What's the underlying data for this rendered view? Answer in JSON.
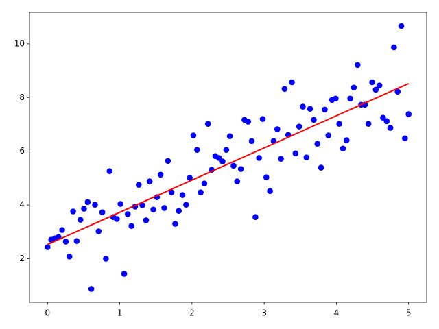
{
  "chart_data": {
    "type": "scatter",
    "xlim": [
      -0.25,
      5.25
    ],
    "ylim": [
      0.38,
      11.17
    ],
    "xticks": [
      0,
      1,
      2,
      3,
      4,
      5
    ],
    "yticks": [
      2,
      4,
      6,
      8,
      10
    ],
    "series": [
      {
        "type": "scatter",
        "color": "#0000ff",
        "x": [
          0,
          0.051,
          0.101,
          0.152,
          0.202,
          0.253,
          0.303,
          0.354,
          0.404,
          0.455,
          0.505,
          0.556,
          0.606,
          0.657,
          0.707,
          0.758,
          0.808,
          0.859,
          0.909,
          0.96,
          1.01,
          1.061,
          1.111,
          1.162,
          1.212,
          1.263,
          1.313,
          1.364,
          1.414,
          1.465,
          1.515,
          1.566,
          1.616,
          1.667,
          1.717,
          1.768,
          1.818,
          1.869,
          1.919,
          1.97,
          2.02,
          2.071,
          2.121,
          2.172,
          2.222,
          2.273,
          2.323,
          2.374,
          2.424,
          2.475,
          2.525,
          2.576,
          2.626,
          2.677,
          2.727,
          2.778,
          2.828,
          2.879,
          2.929,
          2.98,
          3.03,
          3.081,
          3.131,
          3.182,
          3.232,
          3.283,
          3.333,
          3.384,
          3.434,
          3.485,
          3.535,
          3.586,
          3.636,
          3.687,
          3.737,
          3.788,
          3.838,
          3.889,
          3.939,
          3.99,
          4.04,
          4.091,
          4.141,
          4.192,
          4.242,
          4.293,
          4.343,
          4.394,
          4.444,
          4.495,
          4.545,
          4.596,
          4.646,
          4.697,
          4.747,
          4.798,
          4.848,
          4.899,
          4.949,
          5
        ],
        "values": [
          2.43,
          2.71,
          2.76,
          2.81,
          3.07,
          2.64,
          2.08,
          3.76,
          2.66,
          3.45,
          3.86,
          4.11,
          0.88,
          4.01,
          3.02,
          3.73,
          2.0,
          5.26,
          3.55,
          3.48,
          4.04,
          1.44,
          3.66,
          3.22,
          3.94,
          4.75,
          3.99,
          3.43,
          4.88,
          3.83,
          4.29,
          5.13,
          3.89,
          5.64,
          4.47,
          3.3,
          3.78,
          4.37,
          4.01,
          5.01,
          6.59,
          6.05,
          4.47,
          4.8,
          7.02,
          5.31,
          5.82,
          5.75,
          5.62,
          6.05,
          6.56,
          5.46,
          4.88,
          5.34,
          7.17,
          7.1,
          6.38,
          3.55,
          5.75,
          7.2,
          5.03,
          4.52,
          6.38,
          6.82,
          5.72,
          8.32,
          6.61,
          8.57,
          5.92,
          6.92,
          7.66,
          5.77,
          7.58,
          7.17,
          6.28,
          5.39,
          7.55,
          6.59,
          7.91,
          7.96,
          7.02,
          6.1,
          6.41,
          7.96,
          8.37,
          9.21,
          7.73,
          7.73,
          7.02,
          8.57,
          8.29,
          8.45,
          7.25,
          7.12,
          6.87,
          9.87,
          8.22,
          10.66,
          6.48,
          7.38
        ]
      },
      {
        "type": "line",
        "color": "#ff0000",
        "x": [
          0,
          5
        ],
        "values": [
          2.53,
          8.52
        ]
      }
    ]
  }
}
